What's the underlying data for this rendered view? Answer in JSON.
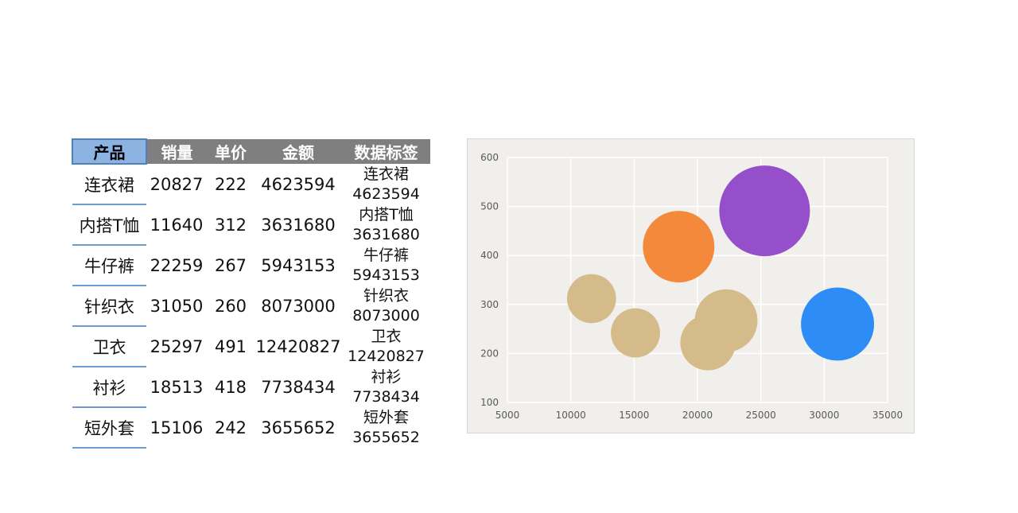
{
  "table": {
    "headers": [
      "产品",
      "销量",
      "单价",
      "金额",
      "数据标签"
    ],
    "rows": [
      {
        "product": "连衣裙",
        "sales": "20827",
        "price": "222",
        "amount": "4623594",
        "label_name": "连衣裙",
        "label_value": "4623594"
      },
      {
        "product": "内搭T恤",
        "sales": "11640",
        "price": "312",
        "amount": "3631680",
        "label_name": "内搭T恤",
        "label_value": "3631680"
      },
      {
        "product": "牛仔裤",
        "sales": "22259",
        "price": "267",
        "amount": "5943153",
        "label_name": "牛仔裤",
        "label_value": "5943153"
      },
      {
        "product": "针织衣",
        "sales": "31050",
        "price": "260",
        "amount": "8073000",
        "label_name": "针织衣",
        "label_value": "8073000"
      },
      {
        "product": "卫衣",
        "sales": "25297",
        "price": "491",
        "amount": "12420827",
        "label_name": "卫衣",
        "label_value": "12420827"
      },
      {
        "product": "衬衫",
        "sales": "18513",
        "price": "418",
        "amount": "7738434",
        "label_name": "衬衫",
        "label_value": "7738434"
      },
      {
        "product": "短外套",
        "sales": "15106",
        "price": "242",
        "amount": "3655652",
        "label_name": "短外套",
        "label_value": "3655652"
      }
    ]
  },
  "chart_data": {
    "type": "bubble",
    "xlim": [
      5000,
      35000
    ],
    "ylim": [
      100,
      600
    ],
    "x_ticks": [
      "5000",
      "10000",
      "15000",
      "20000",
      "25000",
      "30000",
      "35000"
    ],
    "y_ticks": [
      "100",
      "200",
      "300",
      "400",
      "500",
      "600"
    ],
    "grid": true,
    "points": [
      {
        "x": 20827,
        "y": 222,
        "size": 4623594,
        "color": "#d4bb89"
      },
      {
        "x": 11640,
        "y": 312,
        "size": 3631680,
        "color": "#d4bb89"
      },
      {
        "x": 22259,
        "y": 267,
        "size": 5943153,
        "color": "#d4bb89"
      },
      {
        "x": 31050,
        "y": 260,
        "size": 8073000,
        "color": "#2e8cf7"
      },
      {
        "x": 25297,
        "y": 491,
        "size": 12420827,
        "color": "#954fca"
      },
      {
        "x": 18513,
        "y": 418,
        "size": 7738434,
        "color": "#f5893b"
      },
      {
        "x": 15106,
        "y": 242,
        "size": 3655652,
        "color": "#d4bb89"
      }
    ]
  }
}
